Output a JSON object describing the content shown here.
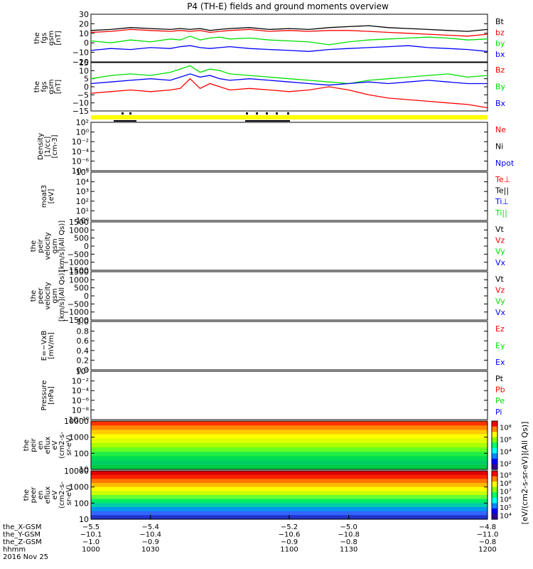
{
  "title": "P4 (TH-E) fields and ground moments overview",
  "colors": {
    "black": "#000000",
    "red": "#ff0000",
    "green": "#00e000",
    "blue": "#0000ff",
    "yellow": "#ffff00"
  },
  "chart_data": {
    "type": "line",
    "title": "P4 (TH-E) fields and ground moments overview",
    "panels": [
      {
        "id": "fgs-gsm",
        "ylabel": [
          "the",
          "fgs",
          "gsm",
          "[nT]"
        ],
        "ylim": [
          -20,
          30
        ],
        "ticks": [
          "30",
          "20",
          "10",
          "0",
          "−10",
          "−20"
        ],
        "tick_vals": [
          30,
          20,
          10,
          0,
          -10,
          -20
        ],
        "legend": [
          {
            "name": "Bt",
            "color": "#000000"
          },
          {
            "name": "bz",
            "color": "#ff0000"
          },
          {
            "name": "by",
            "color": "#00e000"
          },
          {
            "name": "bx",
            "color": "#0000ff"
          }
        ],
        "series": [
          {
            "name": "Bt",
            "color": "#000000",
            "times": [
              1000,
              1010,
              1020,
              1030,
              1040,
              1045,
              1050,
              1055,
              1060,
              1065,
              1070,
              1080,
              1090,
              1100,
              1110,
              1120,
              1130,
              1140,
              1150,
              1160,
              1170,
              1180,
              1190,
              1200
            ],
            "values": [
              13,
              14,
              16,
              15,
              14,
              15,
              14,
              15,
              13,
              14,
              15,
              16,
              14,
              15,
              14,
              16,
              17,
              18,
              16,
              15,
              14,
              13,
              12,
              14
            ]
          },
          {
            "name": "bz",
            "color": "#ff0000",
            "times": [
              1000,
              1010,
              1020,
              1030,
              1040,
              1045,
              1050,
              1055,
              1060,
              1065,
              1070,
              1080,
              1090,
              1100,
              1110,
              1120,
              1130,
              1140,
              1150,
              1160,
              1170,
              1180,
              1190,
              1200
            ],
            "values": [
              11,
              12,
              14,
              13,
              12,
              13,
              12,
              13,
              11,
              12,
              13,
              14,
              12,
              13,
              12,
              13,
              13,
              12,
              11,
              10,
              9,
              8,
              7,
              9
            ]
          },
          {
            "name": "by",
            "color": "#00e000",
            "times": [
              1000,
              1010,
              1020,
              1030,
              1040,
              1045,
              1050,
              1055,
              1060,
              1065,
              1070,
              1080,
              1090,
              1100,
              1110,
              1120,
              1130,
              1140,
              1150,
              1160,
              1170,
              1180,
              1190,
              1200
            ],
            "values": [
              2,
              0,
              3,
              1,
              4,
              3,
              7,
              3,
              5,
              6,
              4,
              5,
              3,
              2,
              1,
              -2,
              1,
              3,
              4,
              5,
              6,
              5,
              3,
              4
            ]
          },
          {
            "name": "bx",
            "color": "#0000ff",
            "times": [
              1000,
              1010,
              1020,
              1030,
              1040,
              1045,
              1050,
              1055,
              1060,
              1065,
              1070,
              1080,
              1090,
              1100,
              1110,
              1120,
              1130,
              1140,
              1150,
              1160,
              1170,
              1180,
              1190,
              1200
            ],
            "values": [
              -8,
              -6,
              -7,
              -5,
              -6,
              -4,
              -3,
              -5,
              -6,
              -5,
              -4,
              -6,
              -7,
              -8,
              -9,
              -7,
              -6,
              -5,
              -4,
              -3,
              -5,
              -6,
              -7,
              -9
            ]
          }
        ]
      },
      {
        "id": "fgs-dsl",
        "ylabel": [
          "the",
          "fgs",
          "gsm",
          "[nT]"
        ],
        "ylim": [
          -15,
          15
        ],
        "ticks": [
          "15",
          "10",
          "5",
          "0",
          "−5",
          "−10",
          "−15"
        ],
        "tick_vals": [
          15,
          10,
          5,
          0,
          -5,
          -10,
          -15
        ],
        "legend": [
          {
            "name": "Bz",
            "color": "#ff0000"
          },
          {
            "name": "By",
            "color": "#00e000"
          },
          {
            "name": "Bx",
            "color": "#0000ff"
          }
        ],
        "series": [
          {
            "name": "By",
            "color": "#00e000",
            "times": [
              1000,
              1010,
              1020,
              1030,
              1040,
              1045,
              1050,
              1055,
              1060,
              1065,
              1070,
              1080,
              1090,
              1100,
              1110,
              1120,
              1130,
              1140,
              1150,
              1160,
              1170,
              1180,
              1190,
              1200
            ],
            "values": [
              5,
              7,
              8,
              7,
              9,
              11,
              13,
              9,
              11,
              10,
              8,
              7,
              6,
              5,
              4,
              3,
              2,
              4,
              5,
              6,
              7,
              8,
              6,
              7
            ]
          },
          {
            "name": "Bx",
            "color": "#0000ff",
            "times": [
              1000,
              1010,
              1020,
              1030,
              1040,
              1045,
              1050,
              1055,
              1060,
              1065,
              1070,
              1080,
              1090,
              1100,
              1110,
              1120,
              1130,
              1140,
              1150,
              1160,
              1170,
              1180,
              1190,
              1200
            ],
            "values": [
              2,
              3,
              4,
              5,
              4,
              6,
              8,
              6,
              7,
              5,
              4,
              5,
              4,
              3,
              2,
              1,
              2,
              3,
              2,
              3,
              4,
              3,
              2,
              2
            ]
          },
          {
            "name": "Bz",
            "color": "#ff0000",
            "times": [
              1000,
              1010,
              1020,
              1030,
              1040,
              1045,
              1050,
              1055,
              1060,
              1065,
              1070,
              1080,
              1090,
              1100,
              1110,
              1120,
              1130,
              1140,
              1150,
              1160,
              1170,
              1180,
              1190,
              1200
            ],
            "values": [
              -4,
              -3,
              -2,
              -3,
              -2,
              -1,
              5,
              -1,
              2,
              0,
              -2,
              -1,
              -2,
              -3,
              -2,
              0,
              -2,
              -5,
              -7,
              -8,
              -9,
              -10,
              -11,
              -13
            ]
          }
        ]
      },
      {
        "id": "density",
        "ylabel": [
          "Density",
          "[1/cc]",
          "[cm-3]"
        ],
        "scale": "log",
        "ticks": [
          "10²",
          "10⁰",
          "10⁻²",
          "10⁻⁴",
          "10⁻⁶",
          "10⁻⁸"
        ],
        "legend": [
          {
            "name": "Ne",
            "color": "#ff0000"
          },
          {
            "name": "Ni",
            "color": "#000000"
          },
          {
            "name": "Npot",
            "color": "#0000ff"
          }
        ]
      },
      {
        "id": "temp",
        "ylabel": [
          "moat3",
          "[eV]"
        ],
        "scale": "log",
        "ticks": [
          "10⁵",
          "10⁴",
          "10³",
          "10²",
          "10¹",
          "10⁰"
        ],
        "legend": [
          {
            "name": "Te⊥",
            "color": "#ff0000"
          },
          {
            "name": "Te||",
            "color": "#000000"
          },
          {
            "name": "Ti⊥",
            "color": "#0000ff"
          },
          {
            "name": "Ti||",
            "color": "#00e000"
          }
        ]
      },
      {
        "id": "peir-vel",
        "ylabel": [
          "the",
          "peir",
          "velocity",
          "gsm",
          "[km/s](All Qs)]"
        ],
        "ticks": [
          "1500",
          "1000",
          "500",
          "0",
          "−500",
          "−1000",
          "−1500"
        ],
        "legend": [
          {
            "name": "Vt",
            "color": "#000000"
          },
          {
            "name": "Vz",
            "color": "#ff0000"
          },
          {
            "name": "Vy",
            "color": "#00e000"
          },
          {
            "name": "Vx",
            "color": "#0000ff"
          }
        ]
      },
      {
        "id": "peer-vel",
        "ylabel": [
          "the",
          "peer",
          "velocity",
          "gsm",
          "[km/s](All Qs)]"
        ],
        "ticks": [
          "1500",
          "1000",
          "500",
          "0",
          "−500",
          "−1000",
          "−1500"
        ],
        "legend": [
          {
            "name": "Vt",
            "color": "#000000"
          },
          {
            "name": "Vz",
            "color": "#ff0000"
          },
          {
            "name": "Vy",
            "color": "#00e000"
          },
          {
            "name": "Vx",
            "color": "#0000ff"
          }
        ]
      },
      {
        "id": "efield",
        "ylabel": [
          "E=−VxB",
          "[mV/m]"
        ],
        "ticks": [
          "1.0",
          "0.8",
          "0.6",
          "0.4",
          "0.2",
          "0.0"
        ],
        "legend": [
          {
            "name": "Ez",
            "color": "#ff0000"
          },
          {
            "name": "Ey",
            "color": "#00e000"
          },
          {
            "name": "Ex",
            "color": "#0000ff"
          }
        ]
      },
      {
        "id": "pressure",
        "ylabel": [
          "Pressure",
          "[nPa]"
        ],
        "scale": "log",
        "ticks": [
          "10⁰",
          "10⁻²",
          "10⁻⁴",
          "10⁻⁶",
          "10⁻⁸",
          "10⁻¹⁰"
        ],
        "legend": [
          {
            "name": "Pt",
            "color": "#000000"
          },
          {
            "name": "Pb",
            "color": "#ff0000"
          },
          {
            "name": "Pe",
            "color": "#00e000"
          },
          {
            "name": "Pi",
            "color": "#0000ff"
          }
        ]
      },
      {
        "id": "peir-eflux",
        "type": "heatmap",
        "ylabel": [
          "the",
          "peir",
          "en",
          "eflux",
          "eV",
          "(cm2-s-",
          "sr-eV)"
        ],
        "ticks": [
          "10000",
          "1000",
          "100",
          "10"
        ],
        "colorbar_ticks": [
          "10⁸",
          "10⁶",
          "10⁴",
          "10²"
        ],
        "colorbar_label": "[eV/(cm2-s-sr-eV)](All Qs)]"
      },
      {
        "id": "peer-eflux",
        "type": "heatmap",
        "ylabel": [
          "the",
          "peer",
          "en",
          "eflux",
          "eV",
          "(cm2-s-",
          "sr-eV)"
        ],
        "ticks": [
          "10000",
          "1000",
          "100",
          "10"
        ],
        "colorbar_ticks": [
          "10⁹",
          "10⁸",
          "10⁷",
          "10⁶",
          "10⁵",
          "10⁴"
        ],
        "colorbar_label": "[eV/(cm2-s-sr-eV)]"
      }
    ],
    "xaxis": {
      "rows": [
        {
          "label": "the_X-GSM",
          "values": [
            "−5.5",
            "−5.4",
            "−5.2",
            "−5.0",
            "−4.8"
          ]
        },
        {
          "label": "the_Y-GSM",
          "values": [
            "−10.1",
            "−10.4",
            "−10.6",
            "−10.8",
            "−11.0"
          ]
        },
        {
          "label": "the_Z-GSM",
          "values": [
            "−1.0",
            "−0.9",
            "−0.9",
            "−0.8",
            "−0.8"
          ]
        },
        {
          "label": "hhmm",
          "values": [
            "1000",
            "1030",
            "1100",
            "1130",
            "1200"
          ]
        }
      ],
      "date": "2016 Nov 25",
      "time_range": [
        1000,
        1200
      ]
    }
  }
}
